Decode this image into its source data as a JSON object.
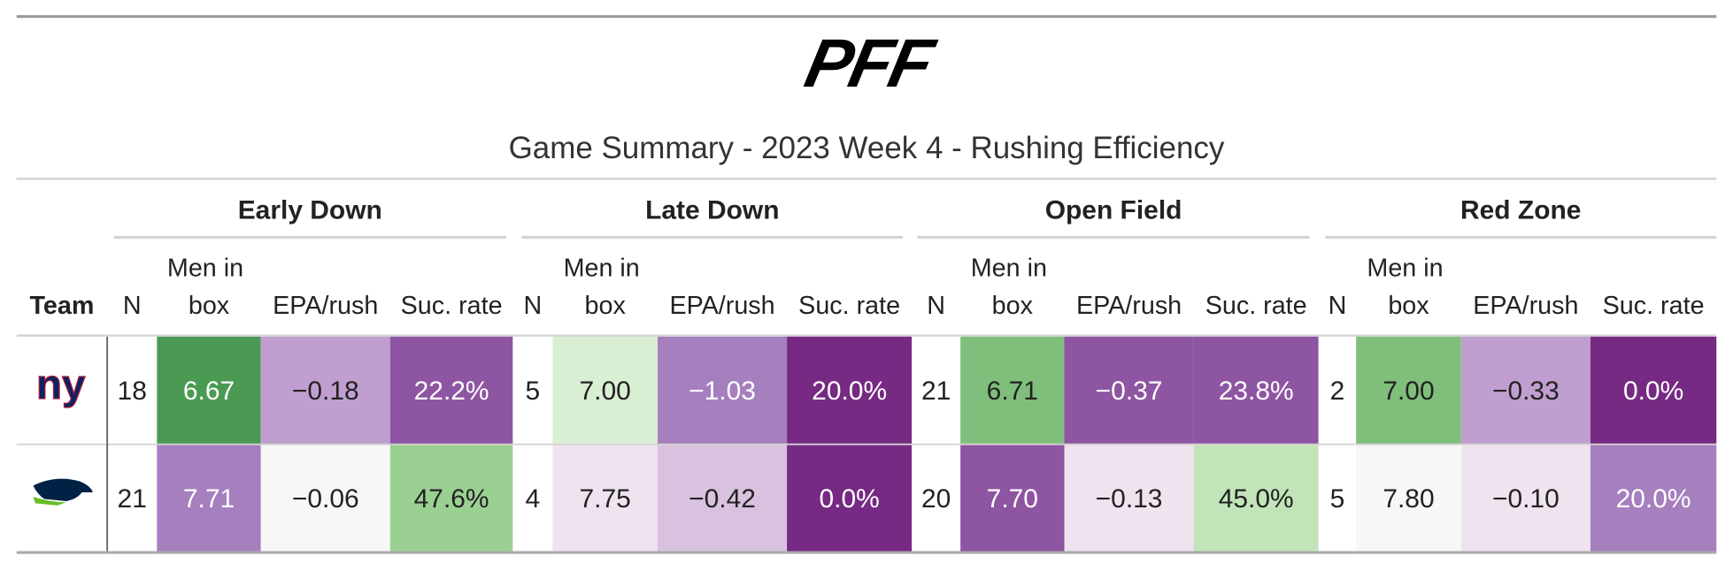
{
  "header": {
    "logo": "PFF",
    "title": "Game Summary - 2023 Week 4 - Rushing Efficiency"
  },
  "table": {
    "groups": [
      "Early Down",
      "Late Down",
      "Open Field",
      "Red Zone"
    ],
    "columns": [
      "Team",
      "N",
      "Men in box",
      "EPA/rush",
      "Suc. rate",
      "N",
      "Men in box",
      "EPA/rush",
      "Suc. rate",
      "N",
      "Men in box",
      "EPA/rush",
      "Suc. rate",
      "N",
      "Men in box",
      "EPA/rush",
      "Suc. rate"
    ],
    "rows": [
      {
        "cells": [
          "18",
          "6.67",
          "−0.18",
          "22.2%",
          "5",
          "7.00",
          "−1.03",
          "20.0%",
          "21",
          "6.71",
          "−0.37",
          "23.8%",
          "2",
          "7.00",
          "−0.33",
          "0.0%"
        ],
        "colors": [
          "#ffffff",
          "#4a9a53",
          "#c09fd0",
          "#8e55a2",
          "#ffffff",
          "#d9efd4",
          "#a67fbe",
          "#762a83",
          "#ffffff",
          "#7fbf7b",
          "#8e55a2",
          "#8e55a2",
          "#ffffff",
          "#7fbf7b",
          "#c09fd0",
          "#762a83"
        ]
      },
      {
        "cells": [
          "21",
          "7.71",
          "−0.06",
          "47.6%",
          "4",
          "7.75",
          "−0.42",
          "0.0%",
          "20",
          "7.70",
          "−0.13",
          "45.0%",
          "5",
          "7.80",
          "−0.10",
          "20.0%"
        ],
        "colors": [
          "#ffffff",
          "#a67fbe",
          "#f7f7f7",
          "#9bd093",
          "#ffffff",
          "#efe3f0",
          "#d9c2df",
          "#762a83",
          "#ffffff",
          "#8e55a2",
          "#efe3f0",
          "#c2e4b9",
          "#ffffff",
          "#f7f7f7",
          "#efe3f0",
          "#a67fbe"
        ]
      }
    ]
  }
}
